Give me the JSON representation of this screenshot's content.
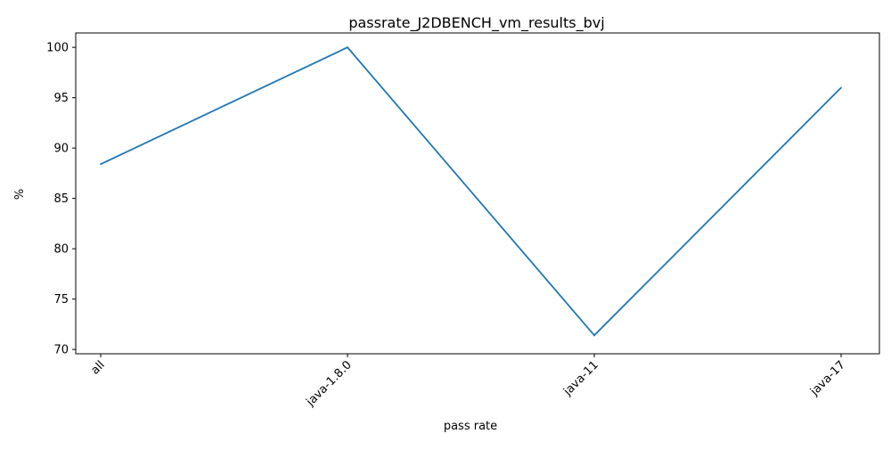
{
  "chart_data": {
    "type": "line",
    "title": "passrate_J2DBENCH_vm_results_bvj",
    "xlabel": "pass rate",
    "ylabel": "%",
    "categories": [
      "all",
      "java-1.8.0",
      "java-11",
      "java-17"
    ],
    "series": [
      {
        "values": [
          88.4,
          100.0,
          71.4,
          96.0
        ]
      }
    ],
    "ylim": [
      69.57,
      101.43
    ],
    "yticks": [
      70,
      75,
      80,
      85,
      90,
      95,
      100
    ],
    "ytick_labels": [
      "70",
      "75",
      "80",
      "85",
      "90",
      "95",
      "100"
    ],
    "grid": false,
    "legend": "none",
    "colors": {
      "line": "#1f77b4",
      "axes": "#000000",
      "background": "#ffffff"
    }
  }
}
